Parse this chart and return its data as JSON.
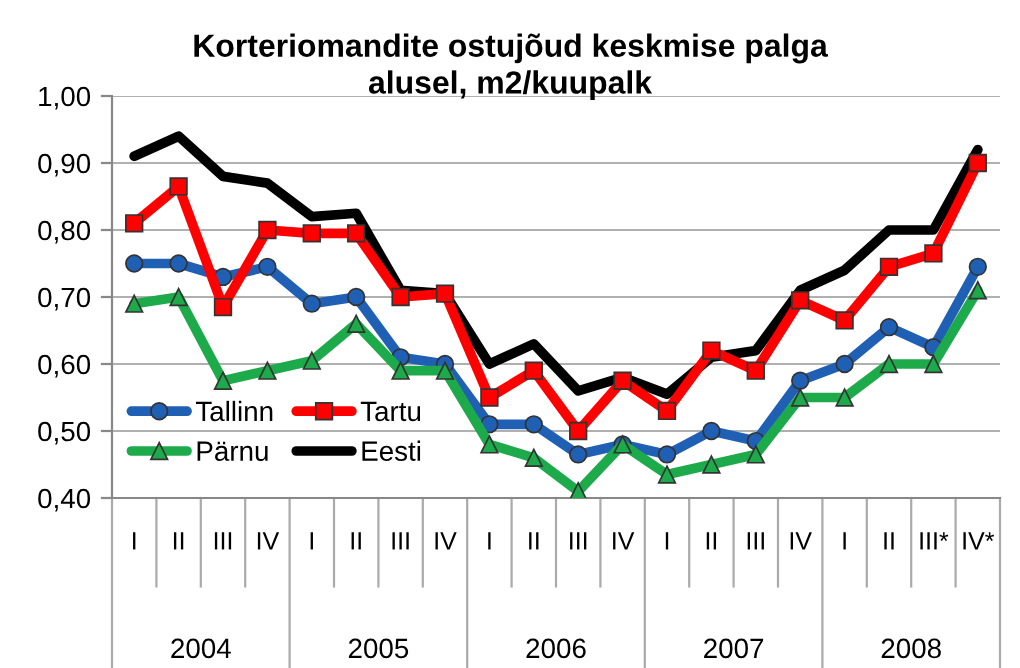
{
  "chart_data": {
    "type": "line",
    "title": "Korteriomandite ostujõud keskmise palga\nalusel, m2/kuupalk",
    "categories": [
      "I",
      "II",
      "III",
      "IV",
      "I",
      "II",
      "III",
      "IV",
      "I",
      "II",
      "III",
      "IV",
      "I",
      "II",
      "III",
      "IV",
      "I",
      "II",
      "III*",
      "IV*"
    ],
    "annotations": [
      "2004",
      "2005",
      "2006",
      "2007",
      "2008"
    ],
    "series": [
      {
        "name": "Tallinn",
        "color": "#1f5fb4",
        "marker": "circle",
        "values": [
          0.75,
          0.75,
          0.73,
          0.745,
          0.69,
          0.7,
          0.61,
          0.6,
          0.51,
          0.51,
          0.465,
          0.48,
          0.465,
          0.5,
          0.485,
          0.575,
          0.6,
          0.655,
          0.625,
          0.745
        ]
      },
      {
        "name": "Tartu",
        "color": "#ff0000",
        "marker": "square",
        "values": [
          0.81,
          0.865,
          0.685,
          0.8,
          0.795,
          0.795,
          0.7,
          0.705,
          0.55,
          0.59,
          0.5,
          0.575,
          0.53,
          0.62,
          0.59,
          0.695,
          0.665,
          0.745,
          0.765,
          0.9
        ]
      },
      {
        "name": "Pärnu",
        "color": "#1daa4a",
        "marker": "triangle",
        "values": [
          0.69,
          0.7,
          0.575,
          0.59,
          0.605,
          0.66,
          0.59,
          0.59,
          0.48,
          0.46,
          0.41,
          0.48,
          0.435,
          0.45,
          0.465,
          0.55,
          0.55,
          0.6,
          0.6,
          0.71
        ]
      },
      {
        "name": "Eesti",
        "color": "#000000",
        "marker": "none",
        "values": [
          0.91,
          0.94,
          0.88,
          0.87,
          0.82,
          0.825,
          0.71,
          0.705,
          0.6,
          0.63,
          0.56,
          0.58,
          0.555,
          0.61,
          0.62,
          0.71,
          0.74,
          0.8,
          0.8,
          0.92
        ]
      }
    ],
    "ylim": [
      0.4,
      1.0
    ],
    "yticks": [
      {
        "value": 0.4,
        "label": "0,40"
      },
      {
        "value": 0.5,
        "label": "0,50"
      },
      {
        "value": 0.6,
        "label": "0,60"
      },
      {
        "value": 0.7,
        "label": "0,70"
      },
      {
        "value": 0.8,
        "label": "0,80"
      },
      {
        "value": 0.9,
        "label": "0,90"
      },
      {
        "value": 1.0,
        "label": "1,00"
      }
    ],
    "grid": "y",
    "legend": "bottom left",
    "line_style": "solid"
  }
}
